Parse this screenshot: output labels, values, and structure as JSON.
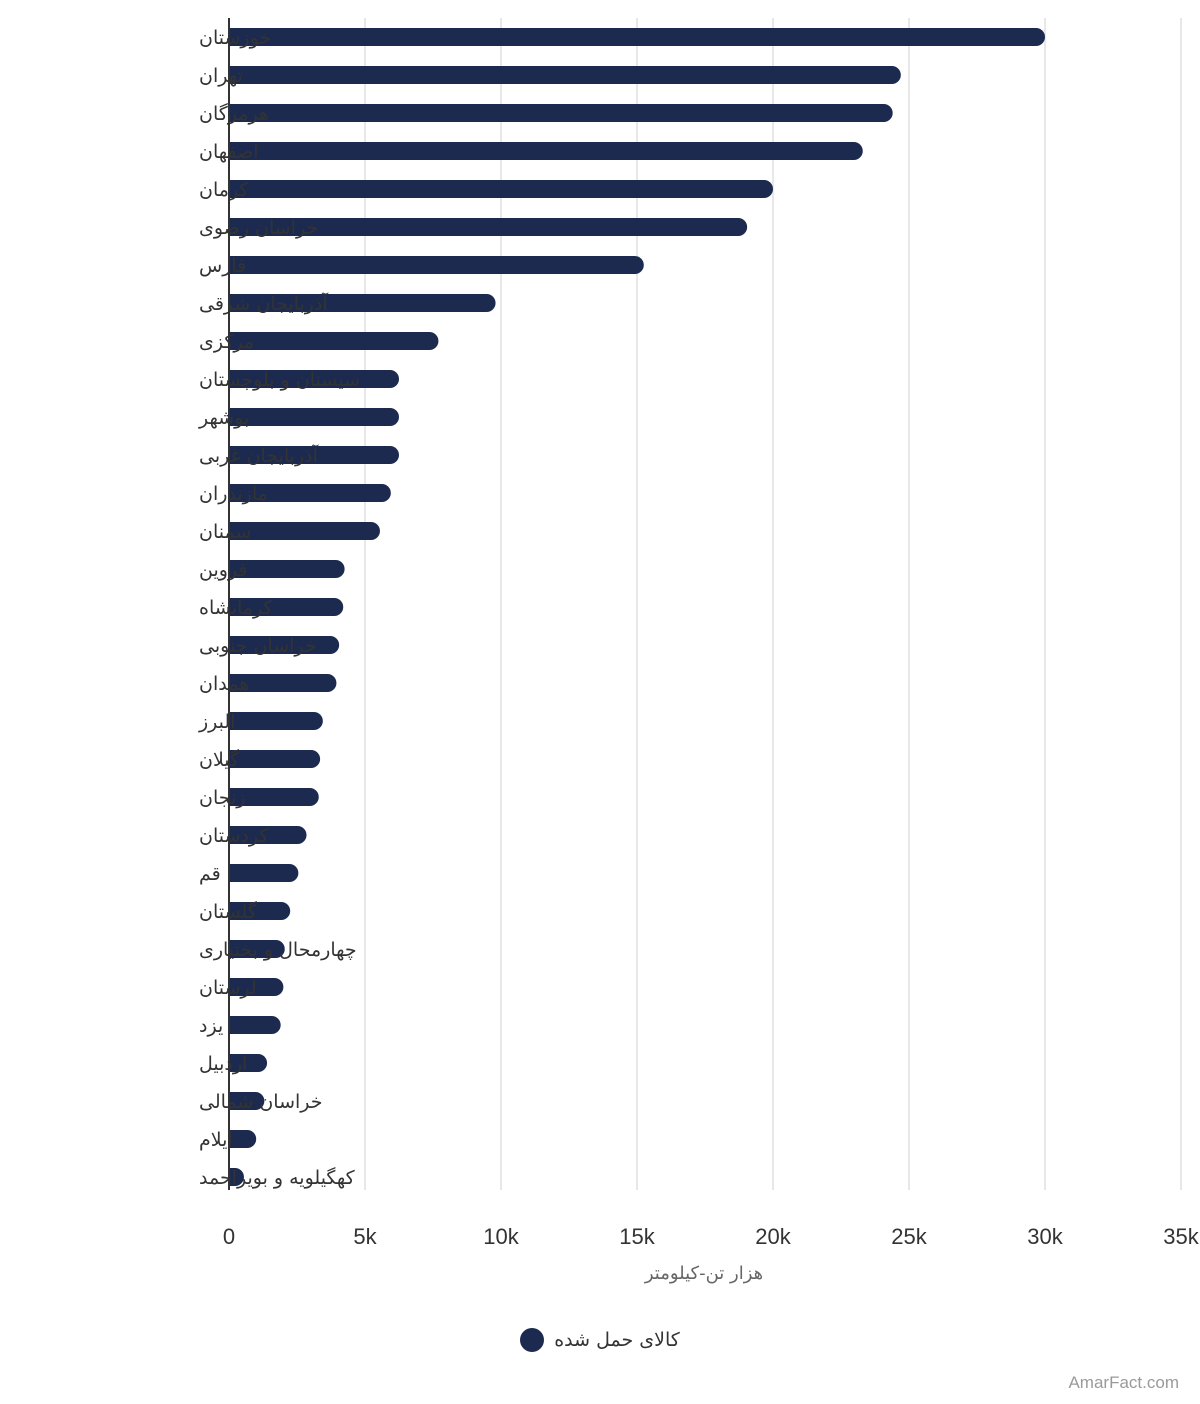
{
  "chart_data": {
    "type": "bar",
    "orientation": "horizontal",
    "categories": [
      "خوزستان",
      "تهران",
      "هرمزگان",
      "اصفهان",
      "کرمان",
      "خراسان رضوی",
      "فارس",
      "آذربایجان شرقی",
      "مرکزی",
      "سیستان و بلوچستان",
      "بوشهر",
      "آذربایجان غربی",
      "مازندران",
      "سمنان",
      "قزوین",
      "کرمانشاه",
      "خراسان جنوبی",
      "همدان",
      "البرز",
      "گیلان",
      "زنجان",
      "کردستان",
      "قم",
      "گلستان",
      "چهارمحال و بختیاری",
      "لرستان",
      "یزد",
      "اردبیل",
      "خراسان شمالی",
      "ایلام",
      "کهگیلویه و بویراحمد"
    ],
    "series": [
      {
        "name": "کالای حمل شده",
        "color": "#1b2a4e",
        "values": [
          30000,
          24700,
          24400,
          23300,
          20000,
          19050,
          15250,
          9800,
          7700,
          6250,
          6250,
          6250,
          5950,
          5550,
          4250,
          4200,
          4050,
          3950,
          3450,
          3350,
          3300,
          2850,
          2550,
          2250,
          2050,
          2000,
          1900,
          1400,
          1300,
          1000,
          550
        ]
      }
    ],
    "xlabel": "هزار تن-کیلومتر",
    "ylabel": "",
    "xlim": [
      0,
      35000
    ],
    "xticks": [
      0,
      5000,
      10000,
      15000,
      20000,
      25000,
      30000,
      35000
    ],
    "xtick_labels": [
      "0",
      "5k",
      "10k",
      "15k",
      "20k",
      "25k",
      "30k",
      "35k"
    ],
    "grid": true,
    "legend_position": "bottom-center"
  },
  "credit": "AmarFact.com"
}
